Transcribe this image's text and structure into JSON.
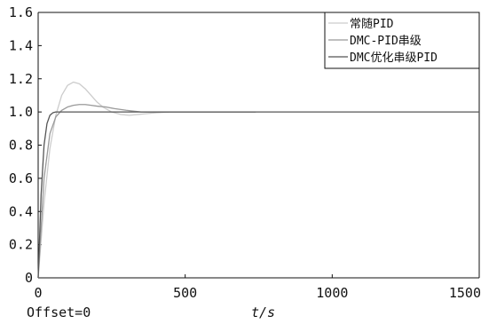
{
  "chart_data": {
    "type": "line",
    "title": "",
    "xlabel": "t/s",
    "ylabel": "",
    "xlim": [
      0,
      1500
    ],
    "ylim": [
      0,
      1.6
    ],
    "x_ticks": [
      "0",
      "500",
      "1000",
      "1500"
    ],
    "y_ticks": [
      "0",
      "0.2",
      "0.4",
      "0.6",
      "0.8",
      "1.0",
      "1.2",
      "1.4",
      "1.6"
    ],
    "grid": false,
    "legend_position": "top-right",
    "annotation": "Offset=0",
    "series": [
      {
        "name": "常随PID",
        "color": "#cccccc",
        "points": [
          [
            0,
            0
          ],
          [
            20,
            0.45
          ],
          [
            40,
            0.78
          ],
          [
            60,
            0.98
          ],
          [
            80,
            1.1
          ],
          [
            100,
            1.16
          ],
          [
            120,
            1.18
          ],
          [
            140,
            1.17
          ],
          [
            160,
            1.14
          ],
          [
            180,
            1.1
          ],
          [
            200,
            1.06
          ],
          [
            220,
            1.03
          ],
          [
            250,
            1.0
          ],
          [
            280,
            0.985
          ],
          [
            310,
            0.98
          ],
          [
            340,
            0.985
          ],
          [
            370,
            0.99
          ],
          [
            400,
            0.995
          ],
          [
            450,
            1.0
          ],
          [
            500,
            1.0
          ],
          [
            550,
            1.0
          ],
          [
            600,
            1.0
          ],
          [
            650,
            1.0
          ],
          [
            700,
            1.0
          ],
          [
            740,
            1.0
          ]
        ]
      },
      {
        "name": "DMC-PID串级",
        "color": "#999999",
        "points": [
          [
            0,
            0
          ],
          [
            20,
            0.6
          ],
          [
            40,
            0.87
          ],
          [
            60,
            0.97
          ],
          [
            80,
            1.01
          ],
          [
            100,
            1.03
          ],
          [
            120,
            1.04
          ],
          [
            140,
            1.045
          ],
          [
            160,
            1.045
          ],
          [
            180,
            1.04
          ],
          [
            200,
            1.035
          ],
          [
            230,
            1.03
          ],
          [
            260,
            1.02
          ],
          [
            300,
            1.01
          ],
          [
            350,
            1.0
          ],
          [
            400,
            1.0
          ],
          [
            450,
            1.0
          ],
          [
            500,
            1.0
          ],
          [
            600,
            1.0
          ],
          [
            740,
            1.0
          ]
        ]
      },
      {
        "name": "DMC优化串级PID",
        "color": "#555555",
        "points": [
          [
            0,
            0
          ],
          [
            10,
            0.5
          ],
          [
            20,
            0.8
          ],
          [
            30,
            0.93
          ],
          [
            40,
            0.98
          ],
          [
            50,
            0.995
          ],
          [
            60,
            1.0
          ],
          [
            80,
            1.0
          ],
          [
            120,
            1.0
          ],
          [
            200,
            1.0
          ],
          [
            400,
            1.0
          ],
          [
            600,
            1.0
          ],
          [
            800,
            1.0
          ],
          [
            1000,
            1.0
          ],
          [
            1200,
            1.0
          ],
          [
            1400,
            1.0
          ],
          [
            1500,
            1.0
          ]
        ]
      }
    ]
  }
}
